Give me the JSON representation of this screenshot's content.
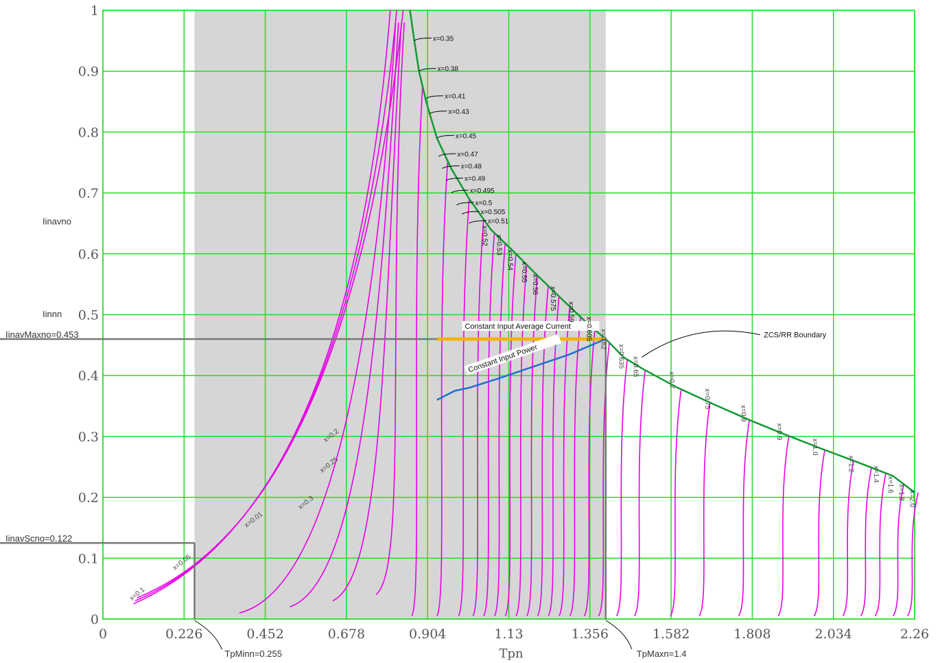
{
  "chart_data": {
    "type": "line",
    "xlabel": "Tpn",
    "ylabel": "Iinavno",
    "xlim": [
      0,
      2.26
    ],
    "ylim": [
      0,
      1
    ],
    "x_ticks": [
      "0",
      "0.226",
      "0.452",
      "0.678",
      "0.904",
      "1.13",
      "1.356",
      "1.582",
      "1.808",
      "2.034",
      "2.26"
    ],
    "y_ticks": [
      "0",
      "0.1",
      "0.2",
      "0.3",
      "0.4",
      "0.5",
      "0.6",
      "0.7",
      "0.8",
      "0.9",
      "1"
    ],
    "grid": true,
    "shaded_region": {
      "x": [
        0.255,
        1.4
      ]
    },
    "boundary_curve": {
      "name": "ZCS/RR Boundary",
      "x": [
        0.855,
        0.867,
        0.88,
        0.9,
        0.93,
        0.97,
        1.02,
        1.08,
        1.15,
        1.2,
        1.27,
        1.35,
        1.4,
        1.45,
        1.5,
        1.6,
        1.7,
        1.8,
        1.9,
        2.0,
        2.1,
        2.2,
        2.26
      ],
      "y": [
        1.0,
        0.95,
        0.9,
        0.85,
        0.79,
        0.74,
        0.69,
        0.64,
        0.6,
        0.57,
        0.53,
        0.485,
        0.46,
        0.43,
        0.412,
        0.38,
        0.353,
        0.327,
        0.303,
        0.28,
        0.258,
        0.235,
        0.208
      ]
    },
    "boundary_labels": [
      {
        "text": "x=0.35",
        "x": 0.867,
        "y": 0.95
      },
      {
        "text": "x=0.38",
        "x": 0.88,
        "y": 0.9
      },
      {
        "text": "x=0.41",
        "x": 0.9,
        "y": 0.855
      },
      {
        "text": "x=0.43",
        "x": 0.91,
        "y": 0.83
      },
      {
        "text": "x=0.45",
        "x": 0.93,
        "y": 0.79
      },
      {
        "text": "x=0.47",
        "x": 0.935,
        "y": 0.76
      },
      {
        "text": "x=0.48",
        "x": 0.945,
        "y": 0.74
      },
      {
        "text": "x=0.49",
        "x": 0.955,
        "y": 0.72
      },
      {
        "text": "x=0.495",
        "x": 0.97,
        "y": 0.7
      },
      {
        "text": "x=0.5",
        "x": 0.985,
        "y": 0.68
      },
      {
        "text": "x=0.505",
        "x": 1.0,
        "y": 0.665
      },
      {
        "text": "x=0.51",
        "x": 1.02,
        "y": 0.65
      },
      {
        "text": "x=0.52",
        "x": 1.05,
        "y": 0.64
      },
      {
        "text": "x=0.53",
        "x": 1.09,
        "y": 0.625
      },
      {
        "text": "x=0.54",
        "x": 1.12,
        "y": 0.6
      },
      {
        "text": "x=0.55",
        "x": 1.16,
        "y": 0.58
      },
      {
        "text": "x=0.56",
        "x": 1.19,
        "y": 0.56
      },
      {
        "text": "x=0.575",
        "x": 1.24,
        "y": 0.54
      },
      {
        "text": "x=0.59",
        "x": 1.29,
        "y": 0.515
      },
      {
        "text": "x=0.605",
        "x": 1.34,
        "y": 0.49
      },
      {
        "text": "x=0.62",
        "x": 1.38,
        "y": 0.47
      },
      {
        "text": "x=0.635",
        "x": 1.43,
        "y": 0.445
      },
      {
        "text": "x=0.65",
        "x": 1.47,
        "y": 0.425
      },
      {
        "text": "x=0.7",
        "x": 1.57,
        "y": 0.4
      },
      {
        "text": "x=0.75",
        "x": 1.67,
        "y": 0.372
      },
      {
        "text": "x=0.8",
        "x": 1.77,
        "y": 0.345
      },
      {
        "text": "x=0.9",
        "x": 1.87,
        "y": 0.315
      },
      {
        "text": "x=1.0",
        "x": 1.97,
        "y": 0.29
      },
      {
        "text": "x=1.2",
        "x": 2.07,
        "y": 0.262
      },
      {
        "text": "x=1.4",
        "x": 2.14,
        "y": 0.245
      },
      {
        "text": "x=1.6",
        "x": 2.18,
        "y": 0.228
      },
      {
        "text": "x=1.8",
        "x": 2.21,
        "y": 0.215
      },
      {
        "text": "x=2.0",
        "x": 2.24,
        "y": 0.205
      }
    ],
    "left_curve_labels": [
      {
        "text": "x=0.1",
        "x": 0.08,
        "y": 0.03
      },
      {
        "text": "x=0.05",
        "x": 0.2,
        "y": 0.08
      },
      {
        "text": "x=0.01",
        "x": 0.4,
        "y": 0.15
      },
      {
        "text": "x=0.2",
        "x": 0.62,
        "y": 0.29
      },
      {
        "text": "x=0.25",
        "x": 0.61,
        "y": 0.24
      },
      {
        "text": "x=0.3",
        "x": 0.55,
        "y": 0.18
      }
    ],
    "curve_starts": [
      0.085,
      0.09,
      0.095,
      0.38,
      0.52,
      0.64,
      0.76,
      0.86,
      0.93,
      0.99,
      1.03,
      1.06,
      1.09,
      1.12,
      1.15,
      1.18,
      1.21,
      1.24,
      1.27,
      1.3,
      1.34,
      1.38,
      1.43,
      1.48,
      1.58,
      1.66,
      1.77,
      1.88,
      1.98,
      2.06,
      2.11,
      2.15,
      2.2,
      2.24
    ],
    "constant_input_average_current": {
      "name": "Constant Input Average Current",
      "x": [
        0.93,
        1.4
      ],
      "y": [
        0.46,
        0.46
      ]
    },
    "constant_input_power": {
      "name": "Constant Input Power",
      "x": [
        0.93,
        0.98,
        1.02,
        1.1,
        1.2,
        1.3,
        1.4
      ],
      "y": [
        0.36,
        0.375,
        0.38,
        0.395,
        0.415,
        0.435,
        0.46
      ]
    },
    "reference_lines": [
      {
        "label": "IinavMaxno=0.453",
        "y": 0.46
      },
      {
        "label": "IinavScno=0.122",
        "y": 0.125
      },
      {
        "label": "TpMinn=0.255",
        "x": 0.255
      },
      {
        "label": "TpMaxn=1.4",
        "x": 1.4
      }
    ],
    "side_labels": [
      "Iinavno",
      "Iinnn"
    ],
    "colors": {
      "grid": "#22dd22",
      "curves": "#e600e6",
      "boundary": "#119933",
      "shade": "#d6d6d6",
      "current": "#f0b400",
      "power": "#1f6fd0",
      "reference": "#777777"
    }
  }
}
